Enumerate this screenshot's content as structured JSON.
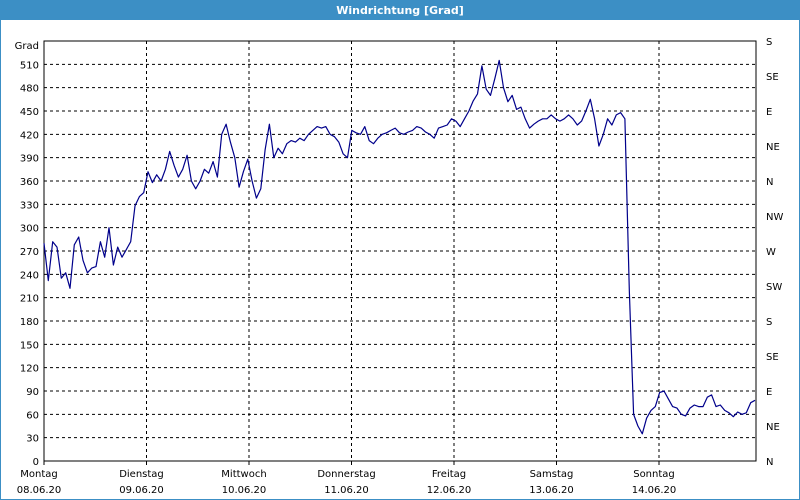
{
  "window": {
    "title": "Windrichtung [Grad]"
  },
  "chart_data": {
    "type": "line",
    "title": "Windrichtung [Grad]",
    "ylabel": "Grad",
    "ylim": [
      0,
      540
    ],
    "grid": true,
    "y_ticks": [
      0,
      30,
      60,
      90,
      120,
      150,
      180,
      210,
      240,
      270,
      300,
      330,
      360,
      390,
      420,
      450,
      480,
      510
    ],
    "right_ticks": [
      {
        "value": 0,
        "label": "N"
      },
      {
        "value": 30,
        "label": "NE"
      },
      {
        "value": 60,
        "label": "E"
      },
      {
        "value": 90,
        "label": "SE"
      },
      {
        "value": 120,
        "label": "S"
      },
      {
        "value": 150,
        "label": "SW"
      },
      {
        "value": 180,
        "label": "W"
      },
      {
        "value": 210,
        "label": "NW"
      },
      {
        "value": 240,
        "label": "N"
      },
      {
        "value": 270,
        "label": "NE"
      },
      {
        "value": 300,
        "label": "E"
      },
      {
        "value": 330,
        "label": "SE"
      },
      {
        "value": 360,
        "label": "S"
      }
    ],
    "x_ticks": [
      {
        "day": "Montag",
        "date": "08.06.20"
      },
      {
        "day": "Dienstag",
        "date": "09.06.20"
      },
      {
        "day": "Mittwoch",
        "date": "10.06.20"
      },
      {
        "day": "Donnerstag",
        "date": "11.06.20"
      },
      {
        "day": "Freitag",
        "date": "12.06.20"
      },
      {
        "day": "Samstag",
        "date": "13.06.20"
      },
      {
        "day": "Sonntag",
        "date": "14.06.20"
      }
    ],
    "series": [
      {
        "color": "#00008b",
        "values": [
          280,
          232,
          282,
          275,
          235,
          242,
          222,
          278,
          288,
          258,
          242,
          248,
          250,
          282,
          262,
          300,
          252,
          275,
          262,
          272,
          282,
          328,
          340,
          345,
          372,
          358,
          368,
          360,
          375,
          398,
          380,
          365,
          375,
          393,
          360,
          350,
          360,
          375,
          370,
          385,
          365,
          420,
          433,
          410,
          390,
          352,
          372,
          388,
          360,
          338,
          350,
          400,
          433,
          390,
          402,
          395,
          408,
          412,
          410,
          415,
          412,
          420,
          425,
          430,
          428,
          430,
          420,
          417,
          410,
          395,
          390,
          425,
          422,
          420,
          430,
          412,
          408,
          415,
          420,
          422,
          425,
          428,
          422,
          420,
          423,
          425,
          430,
          428,
          423,
          420,
          415,
          428,
          430,
          432,
          440,
          437,
          430,
          440,
          450,
          463,
          472,
          508,
          478,
          470,
          492,
          515,
          480,
          462,
          470,
          452,
          455,
          440,
          428,
          433,
          437,
          440,
          440,
          445,
          440,
          437,
          440,
          445,
          440,
          432,
          437,
          450,
          465,
          440,
          405,
          420,
          440,
          432,
          445,
          448,
          440,
          220,
          60,
          45,
          35,
          55,
          65,
          70,
          88,
          90,
          80,
          70,
          68,
          60,
          58,
          68,
          72,
          70,
          70,
          82,
          85,
          70,
          72,
          65,
          62,
          57,
          63,
          60,
          62,
          75,
          78
        ]
      }
    ]
  }
}
